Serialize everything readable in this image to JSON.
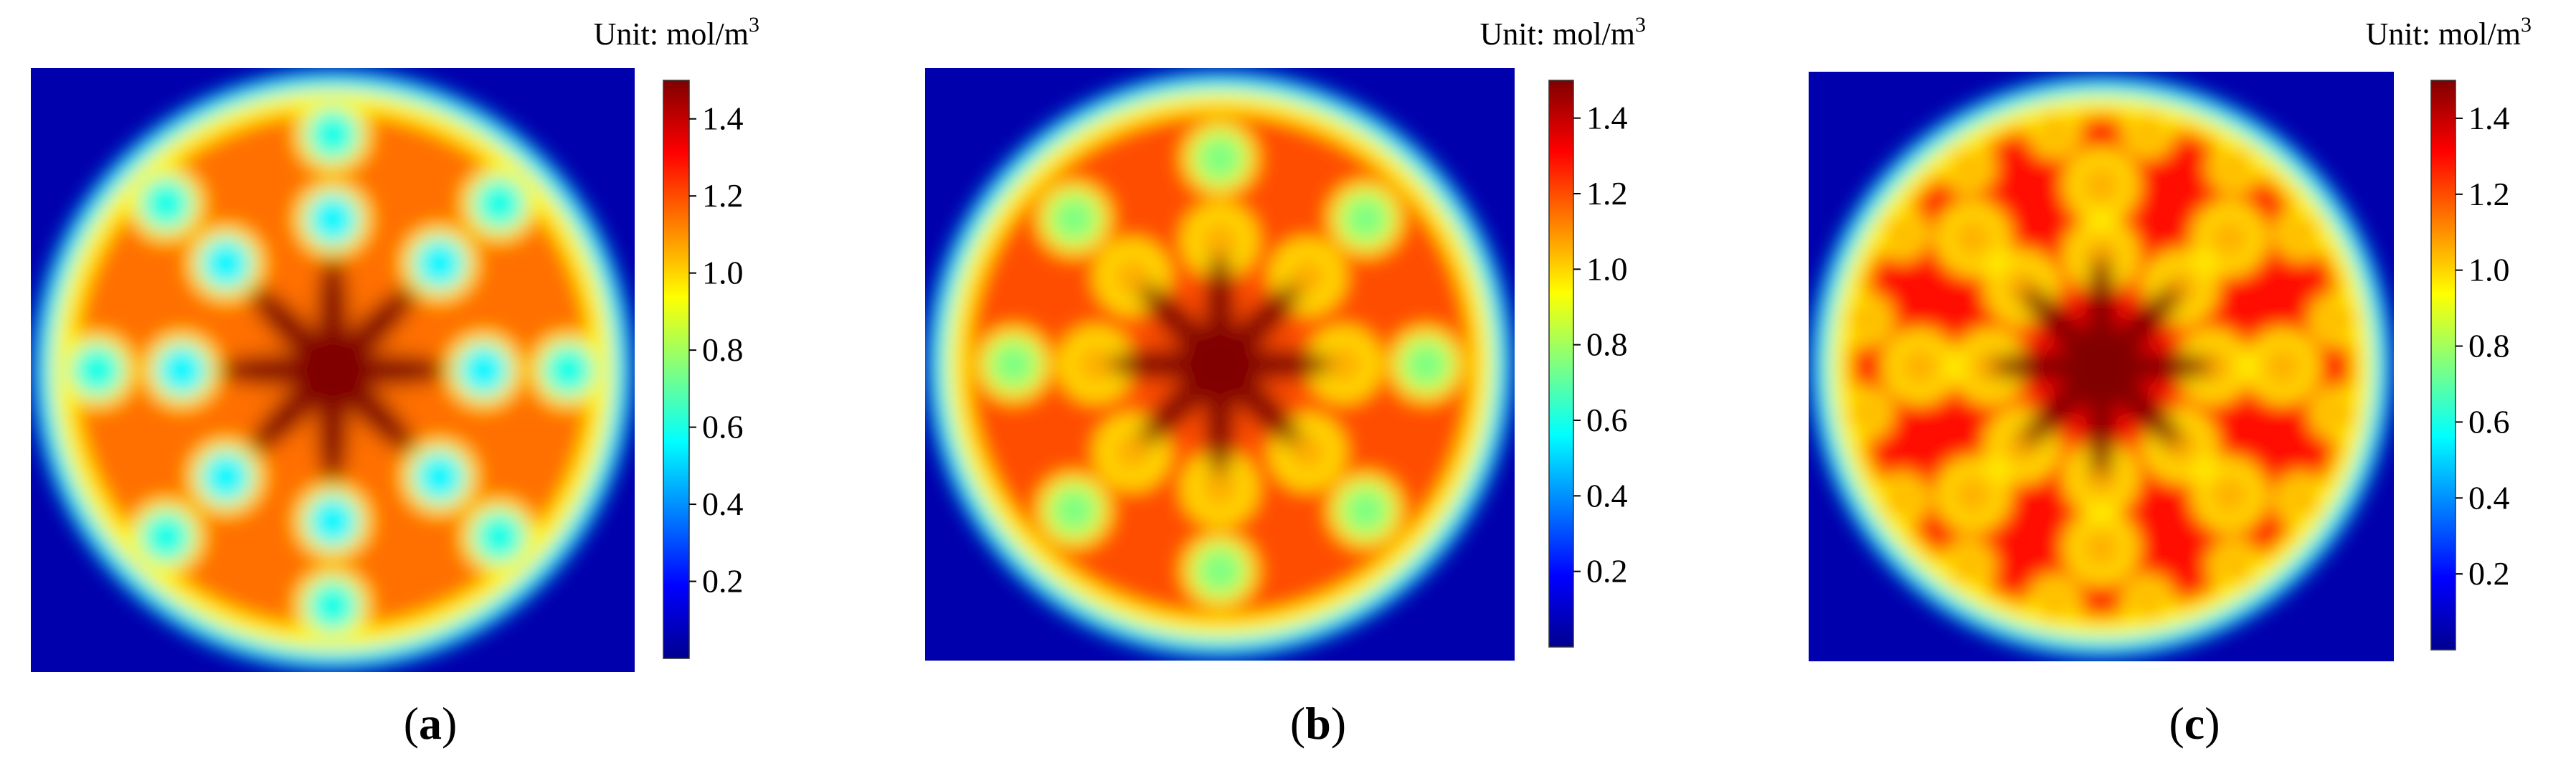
{
  "chart_data": [
    {
      "type": "heatmap",
      "panel": "a",
      "caption_letter": "a",
      "unit_label": "Unit: mol/m",
      "unit_superscript": "3",
      "colorbar": {
        "ticks": [
          "0.2",
          "0.4",
          "0.6",
          "0.8",
          "1.0",
          "1.2",
          "1.4"
        ],
        "tick_values": [
          0.2,
          0.4,
          0.6,
          0.8,
          1.0,
          1.2,
          1.4
        ],
        "range": [
          0.0,
          1.5
        ]
      },
      "pattern": {
        "outer_ring_inner": 0.5,
        "inner_spots": [
          {
            "count": 8,
            "radius_frac": 0.5,
            "value": 0.55
          },
          {
            "count": 8,
            "radius_frac": 0.78,
            "value": 0.6
          }
        ],
        "ring_value": 1.15,
        "core_value": 1.5,
        "background_value": 0.05
      }
    },
    {
      "type": "heatmap",
      "panel": "b",
      "caption_letter": "b",
      "unit_label": "Unit: mol/m",
      "unit_superscript": "3",
      "colorbar": {
        "ticks": [
          "0.2",
          "0.4",
          "0.6",
          "0.8",
          "1.0",
          "1.2",
          "1.4"
        ],
        "tick_values": [
          0.2,
          0.4,
          0.6,
          0.8,
          1.0,
          1.2,
          1.4
        ],
        "range": [
          0.0,
          1.5
        ]
      },
      "pattern": {
        "inner_spots": [
          {
            "count": 8,
            "radius_frac": 0.42,
            "value": 1.05
          },
          {
            "count": 8,
            "radius_frac": 0.7,
            "value": 0.75
          }
        ],
        "ring_value": 1.2,
        "core_value": 1.5,
        "background_value": 0.05
      }
    },
    {
      "type": "heatmap",
      "panel": "c",
      "caption_letter": "c",
      "unit_label": "Unit: mol/m",
      "unit_superscript": "3",
      "colorbar": {
        "ticks": [
          "0.2",
          "0.4",
          "0.6",
          "0.8",
          "1.0",
          "1.2",
          "1.4"
        ],
        "tick_values": [
          0.2,
          0.4,
          0.6,
          0.8,
          1.0,
          1.2,
          1.4
        ],
        "range": [
          0.0,
          1.5
        ]
      },
      "pattern": {
        "inner_spots": [
          {
            "count": 8,
            "radius_frac": 0.38,
            "value": 1.05
          },
          {
            "count": 8,
            "radius_frac": 0.62,
            "value": 1.05
          },
          {
            "count": 16,
            "radius_frac": 0.82,
            "value": 1.05
          }
        ],
        "ring_value": 1.3,
        "core_value": 1.5,
        "background_value": 0.05
      }
    }
  ]
}
